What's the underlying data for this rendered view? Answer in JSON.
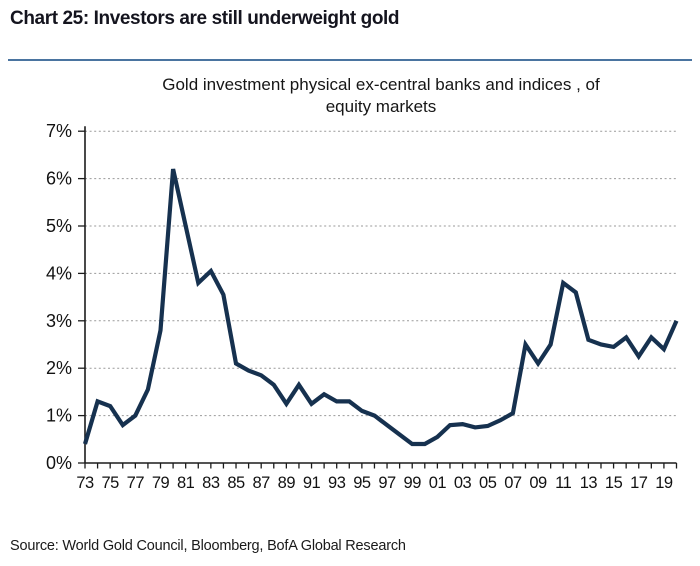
{
  "header": {
    "title": "Chart 25: Investors are still underweight gold"
  },
  "chart_data": {
    "type": "line",
    "title": "Gold investment physical ex-central banks and indices , of equity markets",
    "title_line1": "Gold investment physical ex-central banks and indices , of",
    "title_line2": "equity markets",
    "x": [
      1973,
      1974,
      1975,
      1976,
      1977,
      1978,
      1979,
      1980,
      1981,
      1982,
      1983,
      1984,
      1985,
      1986,
      1987,
      1988,
      1989,
      1990,
      1991,
      1992,
      1993,
      1994,
      1995,
      1996,
      1997,
      1998,
      1999,
      2000,
      2001,
      2002,
      2003,
      2004,
      2005,
      2006,
      2007,
      2008,
      2009,
      2010,
      2011,
      2012,
      2013,
      2014,
      2015,
      2016,
      2017,
      2018,
      2019,
      2020
    ],
    "values": [
      0.4,
      1.3,
      1.2,
      0.8,
      1.0,
      1.55,
      2.8,
      6.2,
      5.0,
      3.8,
      4.05,
      3.55,
      2.1,
      1.95,
      1.85,
      1.65,
      1.25,
      1.65,
      1.25,
      1.45,
      1.3,
      1.3,
      1.1,
      1.0,
      0.8,
      0.6,
      0.4,
      0.4,
      0.55,
      0.8,
      0.82,
      0.75,
      0.78,
      0.9,
      1.05,
      2.5,
      2.1,
      2.5,
      3.8,
      3.6,
      2.6,
      2.5,
      2.45,
      2.65,
      2.25,
      2.65,
      2.4,
      3.0
    ],
    "xlabel": "",
    "ylabel": "",
    "ylim": [
      0,
      7
    ],
    "ytick_labels": [
      "0%",
      "1%",
      "2%",
      "3%",
      "4%",
      "5%",
      "6%",
      "7%"
    ],
    "xtick_labels": [
      "73",
      "75",
      "77",
      "79",
      "81",
      "83",
      "85",
      "87",
      "89",
      "91",
      "93",
      "95",
      "97",
      "99",
      "01",
      "03",
      "05",
      "07",
      "09",
      "11",
      "13",
      "15",
      "17",
      "19"
    ],
    "grid": "horizontal-dotted",
    "legend": "none",
    "line_color": "#16314f"
  },
  "source": {
    "text": "Source: World Gold Council, Bloomberg, BofA Global Research"
  },
  "colors": {
    "background": "#ffffff",
    "divider": "#4a74a0",
    "line": "#16314f",
    "gridline": "#9a9a9a",
    "axis": "#1c1c1c"
  }
}
